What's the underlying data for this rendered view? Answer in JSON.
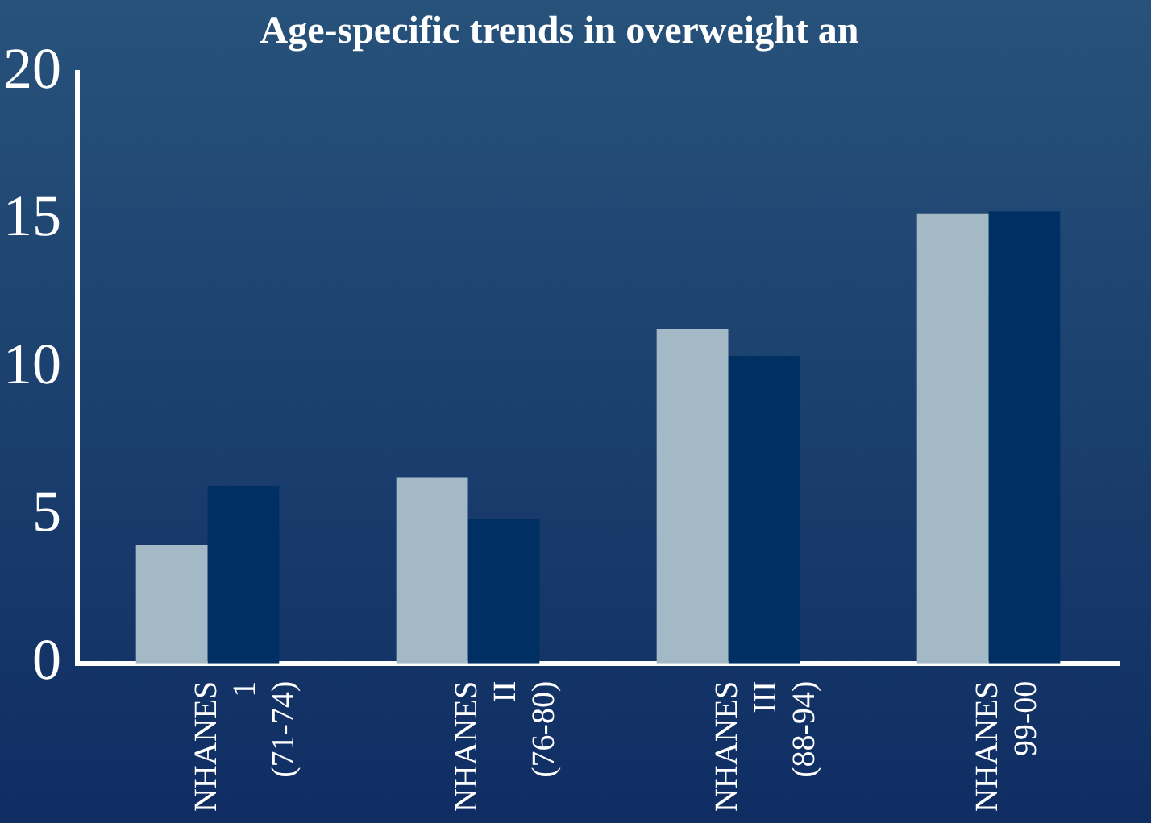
{
  "chart_data": {
    "type": "bar",
    "title": "Age-specific trends in overweight an",
    "categories": [
      "NHANES 1 (71-74)",
      "NHANES II (76-80)",
      "NHANES III (88-94)",
      "NHANES 99-00"
    ],
    "series": [
      {
        "color": "#a3b9c6",
        "values": [
          4.0,
          6.3,
          11.3,
          15.2
        ]
      },
      {
        "color": "#003063",
        "values": [
          6.0,
          4.9,
          10.4,
          15.3
        ]
      }
    ],
    "ylim": [
      0,
      20
    ],
    "yticks": [
      0,
      5,
      10,
      15,
      20
    ],
    "grid": false,
    "legend": false
  }
}
